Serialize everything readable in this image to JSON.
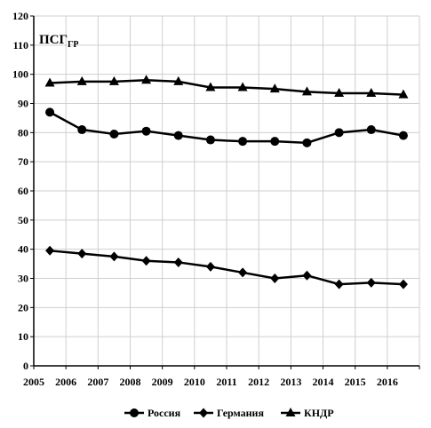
{
  "chart_data": {
    "type": "line",
    "title": "",
    "ylabel": "ПСГ",
    "ylabel_sub": "ГР",
    "xlabel": "",
    "x": [
      "2005",
      "2006",
      "2007",
      "2008",
      "2009",
      "2010",
      "2011",
      "2012",
      "2013",
      "2014",
      "2015",
      "2016"
    ],
    "ylim": [
      0,
      120
    ],
    "yticks": [
      0,
      10,
      20,
      30,
      40,
      50,
      60,
      70,
      80,
      90,
      100,
      110,
      120
    ],
    "grid": true,
    "legend_position": "bottom",
    "series": [
      {
        "name": "Россия",
        "marker": "circle",
        "values": [
          87,
          81,
          79.5,
          80.5,
          79,
          77.5,
          77,
          77,
          76.5,
          80,
          81,
          79
        ]
      },
      {
        "name": "Германия",
        "marker": "diamond",
        "values": [
          39.5,
          38.5,
          37.5,
          36,
          35.5,
          34,
          32,
          30,
          31,
          28,
          28.5,
          28
        ]
      },
      {
        "name": "КНДР",
        "marker": "triangle",
        "values": [
          97,
          97.5,
          97.5,
          98,
          97.5,
          95.5,
          95.5,
          95,
          94,
          93.5,
          93.5,
          93
        ]
      }
    ],
    "colors": {
      "line": "#000000",
      "grid": "#cfcfcf"
    }
  }
}
